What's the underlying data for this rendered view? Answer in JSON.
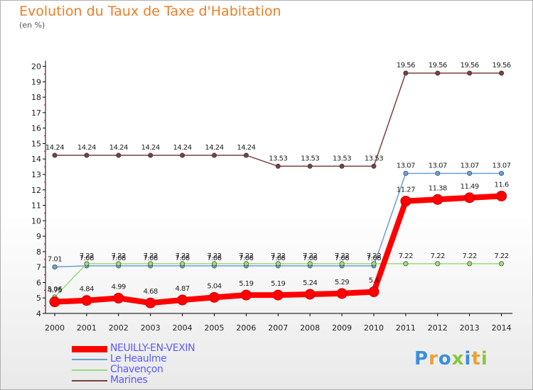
{
  "chart_data": {
    "type": "line",
    "title": "Evolution du Taux de Taxe d'Habitation",
    "subtitle": "(en %)",
    "x": [
      "2000",
      "2001",
      "2002",
      "2003",
      "2004",
      "2005",
      "2006",
      "2007",
      "2008",
      "2009",
      "2010",
      "2011",
      "2012",
      "2013",
      "2014"
    ],
    "ylim": [
      4,
      20
    ],
    "yticks": [
      "4",
      "5",
      "6",
      "7",
      "8",
      "9",
      "10",
      "11",
      "12",
      "13",
      "14",
      "15",
      "16",
      "17",
      "18",
      "19",
      "20"
    ],
    "grid": false,
    "legend_position": "bottom-left",
    "series": [
      {
        "name": "NEUILLY-EN-VEXIN",
        "color": "#ff0000",
        "values": [
          4.75,
          4.84,
          4.99,
          4.68,
          4.87,
          5.04,
          5.19,
          5.19,
          5.24,
          5.29,
          5.4,
          11.27,
          11.38,
          11.49,
          11.6
        ],
        "labels": [
          "4.75",
          "4.84",
          "4.99",
          "4.68",
          "4.87",
          "5.04",
          "5.19",
          "5.19",
          "5.24",
          "5.29",
          "5.4",
          "11.27",
          "11.38",
          "11.49",
          "11.6"
        ]
      },
      {
        "name": "Le Heaulme",
        "color": "#6a9fd4",
        "values": [
          7.01,
          7.08,
          7.08,
          7.08,
          7.08,
          7.08,
          7.08,
          7.08,
          7.08,
          7.08,
          7.08,
          13.07,
          13.07,
          13.07,
          13.07
        ],
        "labels": [
          "7.01",
          "7.08",
          "7.08",
          "7.08",
          "7.08",
          "7.08",
          "7.08",
          "7.08",
          "7.08",
          "7.08",
          "7.08",
          "13.07",
          "13.07",
          "13.07",
          "13.07"
        ]
      },
      {
        "name": "Chavençon",
        "color": "#99dd77",
        "values": [
          5.06,
          7.22,
          7.22,
          7.22,
          7.22,
          7.22,
          7.22,
          7.22,
          7.22,
          7.22,
          7.22,
          7.22,
          7.22,
          7.22,
          7.22
        ],
        "labels": [
          "5.06",
          "7.22",
          "7.22",
          "7.22",
          "7.22",
          "7.22",
          "7.22",
          "7.22",
          "7.22",
          "7.22",
          "7.22",
          "7.22",
          "7.22",
          "7.22",
          "7.22"
        ]
      },
      {
        "name": "Marines",
        "color": "#7b3f3f",
        "values": [
          14.24,
          14.24,
          14.24,
          14.24,
          14.24,
          14.24,
          14.24,
          13.53,
          13.53,
          13.53,
          13.53,
          19.56,
          19.56,
          19.56,
          19.56
        ],
        "labels": [
          "14.24",
          "14.24",
          "14.24",
          "14.24",
          "14.24",
          "14.24",
          "14.24",
          "13.53",
          "13.53",
          "13.53",
          "13.53",
          "19.56",
          "19.56",
          "19.56",
          "19.56"
        ]
      }
    ]
  },
  "logo": {
    "text": "Proxiti",
    "colors": [
      "#3a8fd9",
      "#e8a23a",
      "#8cc63e"
    ]
  }
}
